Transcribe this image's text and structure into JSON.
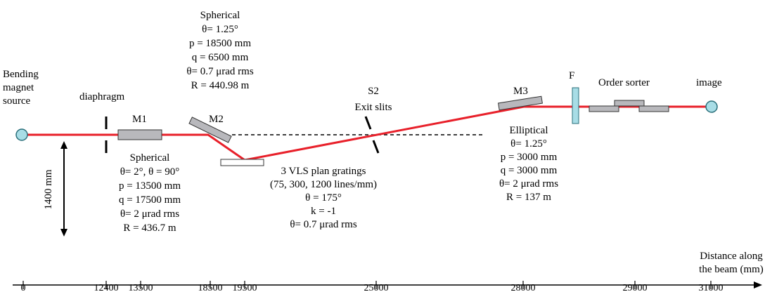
{
  "labels": {
    "source": [
      "Bending",
      "magnet",
      "source"
    ],
    "diaphragm": "diaphragm",
    "m1": "M1",
    "m2": "M2",
    "m3": "M3",
    "f": "F",
    "order_sorter": "Order sorter",
    "image": "image",
    "s2": [
      "S2",
      "Exit slits"
    ],
    "distance": [
      "Distance along",
      "the beam (mm)"
    ],
    "height": "1400 mm"
  },
  "m2_spec": [
    "Spherical",
    "θ= 1.25°",
    "p = 18500 mm",
    "q = 6500 mm",
    "θ= 0.7 μrad rms",
    "R = 440.98 m"
  ],
  "m1_spec": [
    "Spherical",
    "θ= 2°, θ = 90°",
    "p = 13500 mm",
    "q = 17500 mm",
    "θ= 2 μrad rms",
    "R = 436.7 m"
  ],
  "grating_spec": [
    "3 VLS plan gratings",
    "(75, 300, 1200 lines/mm)",
    "θ = 175°",
    "k = -1",
    "θ= 0.7 μrad rms"
  ],
  "m3_spec": [
    "Elliptical",
    "θ= 1.25°",
    "p = 3000 mm",
    "q = 3000 mm",
    "θ= 2 μrad rms",
    "R = 137 m"
  ],
  "axis_ticks": [
    "0",
    "12400",
    "13500",
    "18500",
    "19500",
    "25000",
    "28000",
    "29000",
    "31000"
  ],
  "colors": {
    "beam": "#e8202a",
    "optic": "#b8b8bc",
    "source": "#a8dde6",
    "filter": "#a8dde6"
  }
}
